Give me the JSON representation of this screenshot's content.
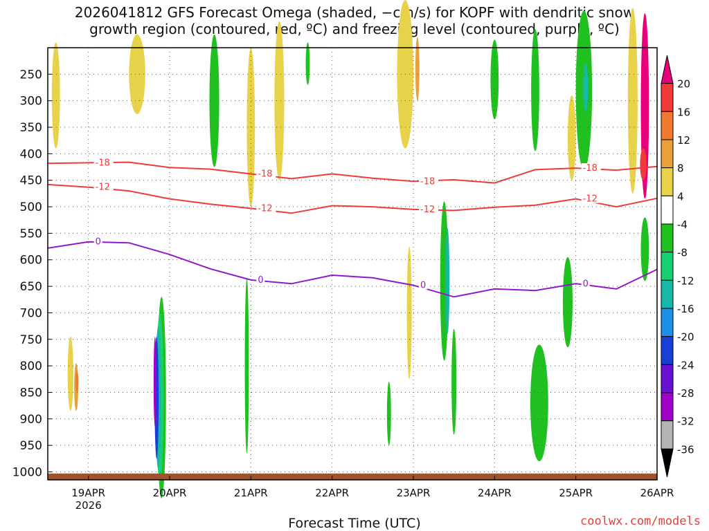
{
  "chart_data": {
    "type": "heatmap",
    "title_line1": "2026041812 GFS Forecast Omega (shaded, −cm/s) for KOPF with dendritic snow",
    "title_line2": "growth region (contoured, red, ºC) and freezing level (contoured, purple, ºC)",
    "xlabel": "Forecast Time (UTC)",
    "ylabel": "",
    "y_axis": {
      "scale": "pressure",
      "ticks": [
        250,
        300,
        350,
        400,
        450,
        500,
        550,
        600,
        650,
        700,
        750,
        800,
        850,
        900,
        950,
        1000
      ],
      "range": [
        1000,
        200
      ]
    },
    "x_axis": {
      "tick_labels": [
        "19APR",
        "20APR",
        "21APR",
        "22APR",
        "23APR",
        "24APR",
        "25APR",
        "26APR"
      ],
      "year_label": "2026",
      "range_days": [
        18.5,
        26.0
      ]
    },
    "grid": true,
    "colorbar": {
      "labels": [
        "20",
        "16",
        "12",
        "8",
        "4",
        "-4",
        "-8",
        "-12",
        "-16",
        "-20",
        "-24",
        "-28",
        "-32",
        "-36"
      ],
      "colors": [
        "#e8007a",
        "#f23a3a",
        "#f07830",
        "#e8a038",
        "#e8d24a",
        "#ffffff",
        "#20c020",
        "#18d070",
        "#18b8a8",
        "#1c90e8",
        "#1840d8",
        "#6a10d0",
        "#a000c8",
        "#b4b4b4",
        "#000000"
      ]
    },
    "contours": [
      {
        "label": "-18",
        "color": "#ee3a3a",
        "x": [
          18.5,
          19,
          19.5,
          20,
          20.5,
          21,
          21.5,
          22,
          22.5,
          23,
          23.5,
          24,
          24.5,
          25,
          25.5,
          26
        ],
        "y": [
          418,
          417,
          416,
          426,
          429,
          438,
          447,
          438,
          446,
          452,
          449,
          455,
          430,
          427,
          431,
          424
        ]
      },
      {
        "label": "-12",
        "color": "#ee3a3a",
        "x": [
          18.5,
          19,
          19.5,
          20,
          20.5,
          21,
          21.5,
          22,
          22.5,
          23,
          23.5,
          24,
          24.5,
          25,
          25.5,
          26
        ],
        "y": [
          458,
          463,
          470,
          485,
          495,
          503,
          512,
          498,
          500,
          505,
          507,
          501,
          497,
          485,
          500,
          484
        ]
      },
      {
        "label": "0",
        "color": "#9018c8",
        "x": [
          18.5,
          19,
          19.5,
          20,
          20.5,
          21,
          21.5,
          22,
          22.5,
          23,
          23.5,
          24,
          24.5,
          25,
          25.5,
          26
        ],
        "y": [
          578,
          566,
          568,
          590,
          617,
          638,
          645,
          629,
          634,
          648,
          670,
          655,
          658,
          645,
          655,
          618
        ]
      }
    ],
    "shaded_regions": [
      {
        "cls": "4",
        "t": 18.78,
        "p": 815,
        "w": 0.07,
        "h": 140
      },
      {
        "cls": "8",
        "t": 18.85,
        "p": 840,
        "w": 0.05,
        "h": 90
      },
      {
        "cls": "12",
        "t": 18.86,
        "p": 830,
        "w": 0.03,
        "h": 40
      },
      {
        "cls": "-4",
        "t": 19.9,
        "p": 860,
        "w": 0.11,
        "h": 380
      },
      {
        "cls": "-8",
        "t": 19.88,
        "p": 860,
        "w": 0.09,
        "h": 320
      },
      {
        "cls": "-12",
        "t": 19.86,
        "p": 860,
        "w": 0.07,
        "h": 270
      },
      {
        "cls": "-20",
        "t": 19.84,
        "p": 860,
        "w": 0.05,
        "h": 230
      },
      {
        "cls": "-28",
        "t": 19.82,
        "p": 830,
        "w": 0.035,
        "h": 170
      },
      {
        "cls": "-4",
        "t": 20.55,
        "p": 300,
        "w": 0.12,
        "h": 250
      },
      {
        "cls": "-4",
        "t": 20.95,
        "p": 800,
        "w": 0.05,
        "h": 330
      },
      {
        "cls": "-4",
        "t": 23.38,
        "p": 640,
        "w": 0.1,
        "h": 300
      },
      {
        "cls": "-12",
        "t": 23.42,
        "p": 640,
        "w": 0.05,
        "h": 200
      },
      {
        "cls": "-4",
        "t": 23.5,
        "p": 830,
        "w": 0.06,
        "h": 200
      },
      {
        "cls": "-4",
        "t": 24.0,
        "p": 260,
        "w": 0.1,
        "h": 150
      },
      {
        "cls": "-4",
        "t": 24.5,
        "p": 280,
        "w": 0.1,
        "h": 230
      },
      {
        "cls": "-4",
        "t": 24.55,
        "p": 870,
        "w": 0.22,
        "h": 220
      },
      {
        "cls": "-4",
        "t": 24.9,
        "p": 680,
        "w": 0.12,
        "h": 170
      },
      {
        "cls": "-4",
        "t": 25.1,
        "p": 280,
        "w": 0.2,
        "h": 300
      },
      {
        "cls": "-12",
        "t": 25.12,
        "p": 275,
        "w": 0.06,
        "h": 90
      },
      {
        "cls": "-4",
        "t": 25.85,
        "p": 580,
        "w": 0.1,
        "h": 120
      },
      {
        "cls": "4",
        "t": 25.7,
        "p": 300,
        "w": 0.12,
        "h": 350
      },
      {
        "cls": "20",
        "t": 25.85,
        "p": 310,
        "w": 0.1,
        "h": 350
      },
      {
        "cls": "16",
        "t": 25.83,
        "p": 420,
        "w": 0.08,
        "h": 60
      },
      {
        "cls": "4",
        "t": 22.9,
        "p": 250,
        "w": 0.2,
        "h": 280
      },
      {
        "cls": "8",
        "t": 23.05,
        "p": 240,
        "w": 0.05,
        "h": 120
      },
      {
        "cls": "4",
        "t": 21.0,
        "p": 350,
        "w": 0.1,
        "h": 300
      },
      {
        "cls": "4",
        "t": 21.35,
        "p": 300,
        "w": 0.12,
        "h": 300
      },
      {
        "cls": "4",
        "t": 19.6,
        "p": 250,
        "w": 0.2,
        "h": 150
      },
      {
        "cls": "4",
        "t": 18.6,
        "p": 290,
        "w": 0.1,
        "h": 200
      },
      {
        "cls": "4",
        "t": 24.95,
        "p": 370,
        "w": 0.1,
        "h": 160
      },
      {
        "cls": "-4",
        "t": 21.7,
        "p": 230,
        "w": 0.05,
        "h": 80
      },
      {
        "cls": "4",
        "t": 22.95,
        "p": 700,
        "w": 0.06,
        "h": 250
      },
      {
        "cls": "-4",
        "t": 22.7,
        "p": 890,
        "w": 0.05,
        "h": 120
      }
    ]
  },
  "watermark": "coolwx.com/models"
}
